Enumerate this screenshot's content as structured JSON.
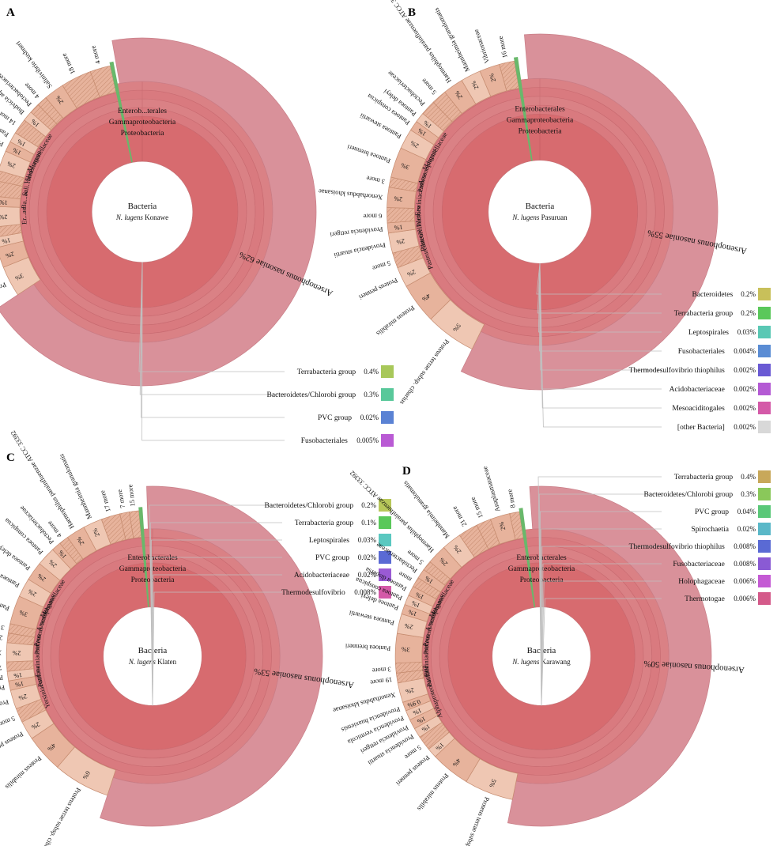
{
  "figure": {
    "panels": [
      "A",
      "B",
      "C",
      "D"
    ]
  },
  "colors": {
    "outer": "#d9919a",
    "ring_mid": "#dc8a8f",
    "proteo": "#d76b6f",
    "peach": "#e7b39c",
    "peach_light": "#efc7b3",
    "brown": "#cf9a79",
    "green": "#69b86b",
    "chart_line": "#c0c0c0"
  },
  "chart_data": [
    {
      "type": "sunburst",
      "panel": "A",
      "center": [
        "Bacteria",
        "N. lugens Konawe"
      ],
      "center_italic": "N. lugens",
      "center_rest": "Konawe",
      "wedges": [
        {
          "label": "Arsenophonus nasoniae",
          "percent": "62%",
          "value": 62
        },
        {
          "label": "Proteus terrae subsp. cibarius",
          "percent": "3%",
          "value": 3
        },
        {
          "label": "Proteus mirabilis",
          "percent": "2%",
          "value": 2
        },
        {
          "label": "Proteus myxofaciensATCC 19692",
          "percent": "1%",
          "value": 1
        },
        {
          "label": "5 more",
          "percent": "",
          "value": 1
        },
        {
          "label": "Xenorhabdus thuongxuanensis",
          "percent": "2%",
          "value": 2
        },
        {
          "label": "Xenorhabdus khoisanae",
          "percent": "1%",
          "value": 1
        },
        {
          "label": "18 more",
          "percent": "",
          "value": 1.5
        },
        {
          "label": "3 more",
          "percent": "",
          "value": 1
        },
        {
          "label": "Pantoea deleyi",
          "percent": "2%",
          "value": 2
        },
        {
          "label": "Pantoea brenneri",
          "percent": "1%",
          "value": 1
        },
        {
          "label": "Pantoea conspicua",
          "percent": "1%",
          "value": 1
        },
        {
          "label": "14 more",
          "percent": "",
          "value": 1.5
        },
        {
          "label": "Budvicia aquatica",
          "percent": "1%",
          "value": 1
        },
        {
          "label": "Pectobacteriaceae",
          "percent": "",
          "value": 1
        },
        {
          "label": "4 more",
          "percent": "",
          "value": 1
        },
        {
          "label": "Salinivibrio kushneri",
          "percent": "2%",
          "value": 2
        },
        {
          "label": "18 more",
          "percent": "",
          "value": 3
        },
        {
          "label": "4 more",
          "percent": "",
          "value": 2
        }
      ],
      "inner_rings": [
        "Proteobacteria",
        "Gammaproteobacteria",
        "Enterob...terales",
        "Morganellaceae",
        "Vibrionaceae",
        "Sali...brio",
        "Ba...ac",
        "Er...ae"
      ],
      "legend": [
        {
          "label": "Terrabacteria group",
          "percent": "0.4%",
          "color": "#a8c85a"
        },
        {
          "label": "Bacteroidetes/Chlorobi group",
          "percent": "0.3%",
          "color": "#58c89a"
        },
        {
          "label": "PVC group",
          "percent": "0.02%",
          "color": "#5a82d4"
        },
        {
          "label": "Fusobacteriales",
          "percent": "0.005%",
          "color": "#b95ad4"
        }
      ]
    },
    {
      "type": "sunburst",
      "panel": "B",
      "center": [
        "Bacteria",
        "N. lugens Pasuruan"
      ],
      "center_italic": "N. lugens",
      "center_rest": "Pasuruan",
      "wedges": [
        {
          "label": "Arsenophonus nasoniae",
          "percent": "55%",
          "value": 55
        },
        {
          "label": "Proteus terrae subsp. cibarius",
          "percent": "5%",
          "value": 5
        },
        {
          "label": "Proteus mirabilis",
          "percent": "4%",
          "value": 4
        },
        {
          "label": "Proteus penneri",
          "percent": "2%",
          "value": 2
        },
        {
          "label": "5 more",
          "percent": "",
          "value": 1.5
        },
        {
          "label": "Providencia stuartii",
          "percent": "2%",
          "value": 2
        },
        {
          "label": "Providencia rettgeri",
          "percent": "1%",
          "value": 1
        },
        {
          "label": "6 more",
          "percent": "",
          "value": 1.5
        },
        {
          "label": "Xenorhabdus khoisanae",
          "percent": "2%",
          "value": 2
        },
        {
          "label": "3 more",
          "percent": "",
          "value": 1
        },
        {
          "label": "Pantoea brenneri",
          "percent": "3%",
          "value": 3
        },
        {
          "label": "Pantoea stewartii",
          "percent": "2%",
          "value": 2
        },
        {
          "label": "Pantoea conspicua",
          "percent": "1%",
          "value": 1
        },
        {
          "label": "Pantoea deleyi",
          "percent": "1%",
          "value": 1
        },
        {
          "label": "Pectobacteriaceae",
          "percent": "",
          "value": 1.5
        },
        {
          "label": "5 more",
          "percent": "",
          "value": 1.5
        },
        {
          "label": "Haemophilus parainfluenzae ATCC 33392",
          "percent": "2%",
          "value": 2
        },
        {
          "label": "Mannheimia granulomatis",
          "percent": "2%",
          "value": 2
        },
        {
          "label": "Vibrionaceae",
          "percent": "2%",
          "value": 2
        },
        {
          "label": "16 more",
          "percent": "",
          "value": 1.5
        }
      ],
      "inner_rings": [
        "Proteobacteria",
        "Gammaproteobacteria",
        "Enterobacterales",
        "Morganellaceae",
        "Arsenophonus",
        "Proteus",
        "Erwiniaceae",
        "Pantoea",
        "Pasteurellales",
        "Pasteurellaceae"
      ],
      "legend": [
        {
          "label": "Bacteroidetes",
          "percent": "0.2%",
          "color": "#c8c05a"
        },
        {
          "label": "Terrabacteria group",
          "percent": "0.2%",
          "color": "#5ac85a"
        },
        {
          "label": "Leptospirales",
          "percent": "0.03%",
          "color": "#5ac8b4"
        },
        {
          "label": "Fusobacteriales",
          "percent": "0.004%",
          "color": "#5a8cd4"
        },
        {
          "label": "Thermodesulfovibrio thiophilus",
          "percent": "0.002%",
          "color": "#6a5ad4"
        },
        {
          "label": "Acidobacteriaceae",
          "percent": "0.002%",
          "color": "#b45ad4"
        },
        {
          "label": "Mesoaciditogales",
          "percent": "0.002%",
          "color": "#d45aa8"
        },
        {
          "label": "[other Bacteria]",
          "percent": "0.002%",
          "color": "#d8d8d8"
        }
      ]
    },
    {
      "type": "sunburst",
      "panel": "C",
      "center": [
        "Bacteria",
        "N. lugens Klaten"
      ],
      "center_italic": "N. lugens",
      "center_rest": "Klaten",
      "wedges": [
        {
          "label": "Arsenophonus nasoniae",
          "percent": "53%",
          "value": 53
        },
        {
          "label": "Proteus terrae subsp. cibarius",
          "percent": "6%",
          "value": 6
        },
        {
          "label": "Proteus mirabilis",
          "percent": "4%",
          "value": 4
        },
        {
          "label": "Proteus penneri",
          "percent": "2%",
          "value": 2
        },
        {
          "label": "5 more",
          "percent": "",
          "value": 1.5
        },
        {
          "label": "Providencia stuartii",
          "percent": "2%",
          "value": 2
        },
        {
          "label": "Providencia rettgeri",
          "percent": "1%",
          "value": 1
        },
        {
          "label": "Providencia vermicola",
          "percent": "1%",
          "value": 1
        },
        {
          "label": "7 more",
          "percent": "",
          "value": 1
        },
        {
          "label": "Xenorhabdus khoisanae",
          "percent": "2%",
          "value": 2
        },
        {
          "label": "21 more",
          "percent": "",
          "value": 1
        },
        {
          "label": "3 more",
          "percent": "",
          "value": 1
        },
        {
          "label": "Pantoea brenneri",
          "percent": "3%",
          "value": 3
        },
        {
          "label": "Pantoea stewartii",
          "percent": "2%",
          "value": 2
        },
        {
          "label": "Pantoea deleyi",
          "percent": "2%",
          "value": 2
        },
        {
          "label": "Pantoea conspicua",
          "percent": "2%",
          "value": 2
        },
        {
          "label": "Pectobacteriaceae",
          "percent": "1%",
          "value": 1
        },
        {
          "label": "4 more",
          "percent": "",
          "value": 1
        },
        {
          "label": "Haemophilus parainfluenzae ATCC 33392",
          "percent": "2%",
          "value": 2
        },
        {
          "label": "Mannheimia granulomatis",
          "percent": "2%",
          "value": 2
        },
        {
          "label": "17 more",
          "percent": "",
          "value": 2
        },
        {
          "label": "7 more",
          "percent": "",
          "value": 1
        },
        {
          "label": "15 more",
          "percent": "",
          "value": 1
        }
      ],
      "inner_rings": [
        "Proteobacteria",
        "Gammaproteobacteria",
        "Enterobacterales",
        "Morganellaceae",
        "Arsenophonus",
        "Proteus terrae",
        "Proteus",
        "Erwiniaceae",
        "Pantoea",
        "Yersiniaceae"
      ],
      "legend": [
        {
          "label": "Bacteroidetes/Chlorobi group",
          "percent": "0.2%",
          "color": "#b8c85a"
        },
        {
          "label": "Terrabacteria group",
          "percent": "0.1%",
          "color": "#5ac85a"
        },
        {
          "label": "Leptospirales",
          "percent": "0.03%",
          "color": "#5ac8c0"
        },
        {
          "label": "PVC group",
          "percent": "0.02%",
          "color": "#5a6ad4"
        },
        {
          "label": "Acidobacteriaceae",
          "percent": "0.02%",
          "color": "#9a5ad4"
        },
        {
          "label": "Thermodesulfovibrio",
          "percent": "0.008%",
          "color": "#d45aa8"
        }
      ]
    },
    {
      "type": "sunburst",
      "panel": "D",
      "center": [
        "Bacteria",
        "N. lugens Karawang"
      ],
      "center_italic": "N. lugens",
      "center_rest": "Karawang",
      "wedges": [
        {
          "label": "Arsenophonus nasoniae",
          "percent": "50%",
          "value": 50
        },
        {
          "label": "Proteus terrae subsp. cibarius",
          "percent": "5%",
          "value": 5
        },
        {
          "label": "Proteus mirabilis",
          "percent": "4%",
          "value": 4
        },
        {
          "label": "Proteus penneri",
          "percent": "1%",
          "value": 1
        },
        {
          "label": "5 more",
          "percent": "",
          "value": 1.5
        },
        {
          "label": "Providencia stuartii",
          "percent": "1%",
          "value": 1
        },
        {
          "label": "Providencia rettgeri",
          "percent": "1%",
          "value": 1
        },
        {
          "label": "Providencia vermicola",
          "percent": "1%",
          "value": 1
        },
        {
          "label": "Providencia huaxiensis",
          "percent": "0.9%",
          "value": 0.9
        },
        {
          "label": "Xenorhabdus khoisanae",
          "percent": "2%",
          "value": 2
        },
        {
          "label": "19 more",
          "percent": "",
          "value": 1
        },
        {
          "label": "3 more",
          "percent": "",
          "value": 1
        },
        {
          "label": "Pantoea brenneri",
          "percent": "3%",
          "value": 3
        },
        {
          "label": "Pantoea stewartii",
          "percent": "2%",
          "value": 2
        },
        {
          "label": "Pantoea deleyi",
          "percent": "1%",
          "value": 1
        },
        {
          "label": "Pantoea conspicua",
          "percent": "1%",
          "value": 1
        },
        {
          "label": "Pantoea dispersa",
          "percent": "1%",
          "value": 1
        },
        {
          "label": "more",
          "percent": "",
          "value": 1
        },
        {
          "label": "Pectobacteriaceae",
          "percent": "1%",
          "value": 1
        },
        {
          "label": "5 more",
          "percent": "",
          "value": 1
        },
        {
          "label": "Haemophilus parainfluenzae ATCC 33392",
          "percent": "2%",
          "value": 2
        },
        {
          "label": "Mannheimia granulomatis",
          "percent": "2%",
          "value": 2
        },
        {
          "label": "21 more",
          "percent": "",
          "value": 2
        },
        {
          "label": "15 more",
          "percent": "",
          "value": 1.5
        },
        {
          "label": "Anaplasmataceae",
          "percent": "2%",
          "value": 2
        },
        {
          "label": "8 more",
          "percent": "",
          "value": 1
        }
      ],
      "inner_rings": [
        "Proteobacteria",
        "Gammaproteobacteria",
        "Enterobacterales",
        "Morganellaceae",
        "Arsenophonus",
        "Proteus terrae",
        "Proteus",
        "Erwiniaceae",
        "Pantoea",
        "Alphaproteobacteria"
      ],
      "legend": [
        {
          "label": "Terrabacteria group",
          "percent": "0.4%",
          "color": "#c8a85a"
        },
        {
          "label": "Bacteroidetes/Chlorobi group",
          "percent": "0.3%",
          "color": "#8ac85a"
        },
        {
          "label": "PVC group",
          "percent": "0.04%",
          "color": "#5ac878"
        },
        {
          "label": "Spirochaetia",
          "percent": "0.02%",
          "color": "#5ab8c8"
        },
        {
          "label": "Thermodesulfovibrio thiophilus",
          "percent": "0.008%",
          "color": "#5a6ad4"
        },
        {
          "label": "Fusobacteriaceae",
          "percent": "0.008%",
          "color": "#8a5ad4"
        },
        {
          "label": "Holophagaceae",
          "percent": "0.006%",
          "color": "#c45ad4"
        },
        {
          "label": "Thermotogae",
          "percent": "0.006%",
          "color": "#d45a8a"
        }
      ]
    }
  ]
}
